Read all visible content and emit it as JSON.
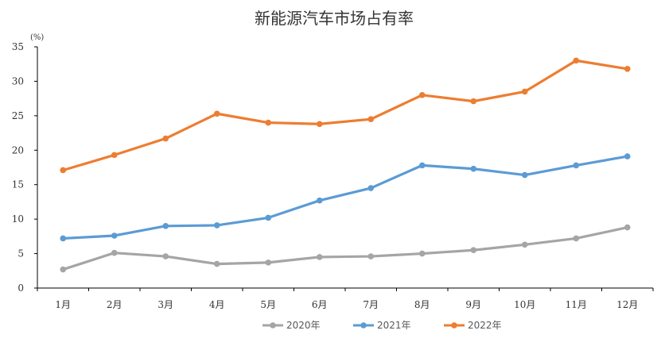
{
  "chart_data": {
    "type": "line",
    "title": "新能源汽车市场占有率",
    "ylabel": "(%)",
    "xlabel": "",
    "categories": [
      "1月",
      "2月",
      "3月",
      "4月",
      "5月",
      "6月",
      "7月",
      "8月",
      "9月",
      "10月",
      "11月",
      "12月"
    ],
    "ylim": [
      0,
      35
    ],
    "yticks": [
      0,
      5,
      10,
      15,
      20,
      25,
      30,
      35
    ],
    "grid": false,
    "legend_position": "bottom",
    "series": [
      {
        "name": "2020年",
        "color": "#A5A5A5",
        "values": [
          2.7,
          5.1,
          4.6,
          3.5,
          3.7,
          4.5,
          4.6,
          5.0,
          5.5,
          6.3,
          7.2,
          8.8
        ]
      },
      {
        "name": "2021年",
        "color": "#5B9BD5",
        "values": [
          7.2,
          7.6,
          9.0,
          9.1,
          10.2,
          12.7,
          14.5,
          17.8,
          17.3,
          16.4,
          17.8,
          19.1
        ]
      },
      {
        "name": "2022年",
        "color": "#ED7D31",
        "values": [
          17.1,
          19.3,
          21.7,
          25.3,
          24.0,
          23.8,
          24.5,
          28.0,
          27.1,
          28.5,
          33.0,
          31.8
        ]
      }
    ]
  }
}
